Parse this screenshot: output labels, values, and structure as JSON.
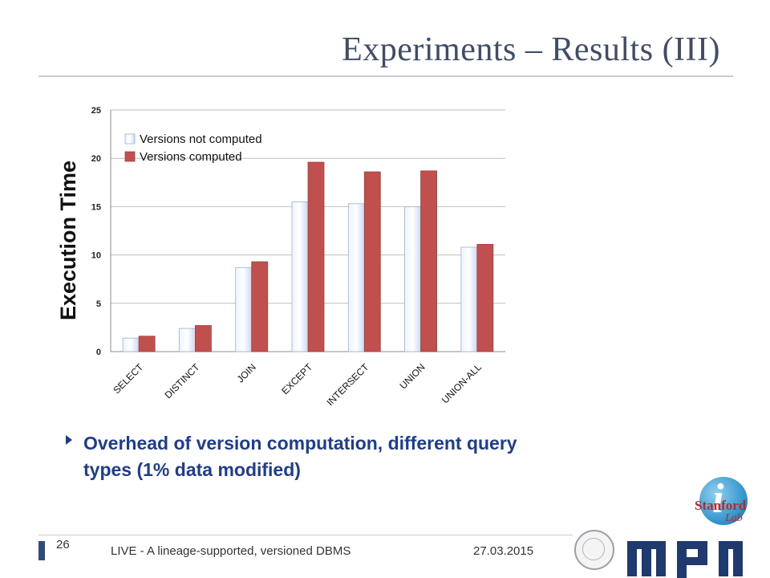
{
  "slide": {
    "title": "Experiments – Results (III)",
    "bullet": "Overhead of version computation, different query types (1% data modified)",
    "page_number": "26",
    "footer_text": "LIVE - A lineage-supported, versioned DBMS",
    "footer_date": "27.03.2015"
  },
  "logos": {
    "stanford_text": "Stanford",
    "stanford_lab": "Lab"
  },
  "colors": {
    "title": "#3f4d66",
    "bullet": "#1e3d8f",
    "series_not_computed": "#dce8f8",
    "series_computed": "#c0504d"
  },
  "chart_data": {
    "type": "bar",
    "ylabel": "Execution Time",
    "ylim": [
      0,
      25
    ],
    "yticks": [
      0,
      5,
      10,
      15,
      20,
      25
    ],
    "grid": true,
    "legend_position": "top-left",
    "categories": [
      "SELECT",
      "DISTINCT",
      "JOIN",
      "EXCEPT",
      "INTERSECT",
      "UNION",
      "UNION-ALL"
    ],
    "series": [
      {
        "name": "Versions not computed",
        "values": [
          1.4,
          2.4,
          8.7,
          15.5,
          15.3,
          15.0,
          10.8
        ]
      },
      {
        "name": "Versions computed",
        "values": [
          1.6,
          2.7,
          9.3,
          19.6,
          18.6,
          18.7,
          11.1
        ]
      }
    ]
  }
}
